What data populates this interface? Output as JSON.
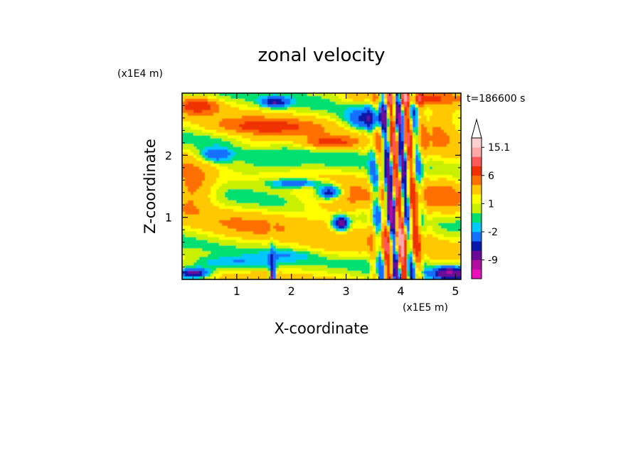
{
  "chart_data": {
    "type": "heatmap",
    "title": "zonal velocity",
    "xlabel": "X-coordinate",
    "ylabel": "Z-coordinate",
    "x_multiplier": "(x1E5 m)",
    "y_multiplier": "(x1E4 m)",
    "time_label": "t=186600 s",
    "xlim": [
      0,
      5.1
    ],
    "ylim": [
      0,
      3.0
    ],
    "x_ticks": [
      "1",
      "2",
      "3",
      "4",
      "5"
    ],
    "y_ticks": [
      "1",
      "2"
    ],
    "colorbar": {
      "labels": [
        "15.1",
        "6",
        "1",
        "-2",
        "-9"
      ],
      "levels": [
        -15,
        -12,
        -9,
        -6,
        -4,
        -2,
        -1,
        0,
        1,
        2,
        4,
        6,
        9,
        12,
        15.1
      ],
      "colors": [
        "#e810b8",
        "#b00ca0",
        "#6a0898",
        "#0818a8",
        "#1470ff",
        "#00c8ff",
        "#00e070",
        "#c8f000",
        "#ffff00",
        "#ffc800",
        "#ff7000",
        "#f03000",
        "#ff5858",
        "#ffa8a8",
        "#ffd0d0"
      ],
      "extend": "max"
    }
  }
}
